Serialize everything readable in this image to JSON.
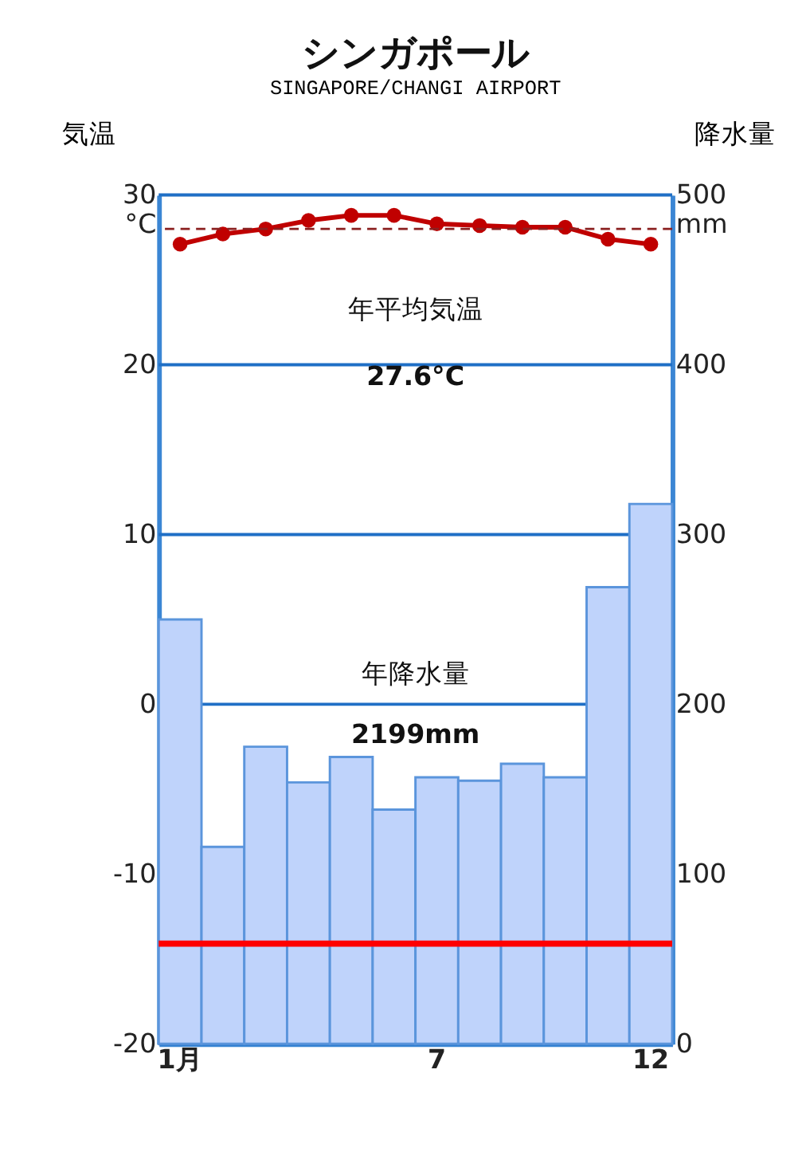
{
  "chart_data": {
    "type": "bar",
    "title": "シンガポール",
    "subtitle": "SINGAPORE/CHANGI AIRPORT",
    "ylabel": "気温",
    "y2label": "降水量",
    "categories": [
      "1月",
      null,
      null,
      null,
      null,
      null,
      "7",
      null,
      null,
      null,
      null,
      "12"
    ],
    "series": [
      {
        "axis": "y2",
        "color": "#bfd3fb",
        "values": [
          250,
          116,
          175,
          154,
          169,
          138,
          157,
          155,
          165,
          157,
          269,
          318
        ]
      },
      {
        "type": "line",
        "axis": "y",
        "color": "#c00000",
        "marker": "circle",
        "values": [
          27.1,
          27.7,
          28.0,
          28.5,
          28.8,
          28.8,
          28.3,
          28.2,
          28.1,
          28.1,
          27.4,
          27.1
        ]
      }
    ],
    "ylim": [
      -20,
      30
    ],
    "yticks": [
      -20,
      -10,
      0,
      10,
      20,
      {
        "value": 30,
        "label": "30 °C"
      }
    ],
    "y2lim": [
      0,
      500
    ],
    "y2ticks": [
      0,
      100,
      200,
      300,
      400,
      {
        "value": 500,
        "label": "500 mm"
      }
    ],
    "ref_lines": [
      {
        "axis": "y",
        "value": 28.0,
        "color": "#8b2020",
        "line_style": "dashed"
      },
      {
        "axis": "y2",
        "value": 59,
        "color": "#ff0000",
        "line_style": "solid"
      }
    ],
    "annotations": [
      "年平均気温",
      "27.6°C",
      "年降水量",
      "2199mm"
    ],
    "grid": "y"
  }
}
